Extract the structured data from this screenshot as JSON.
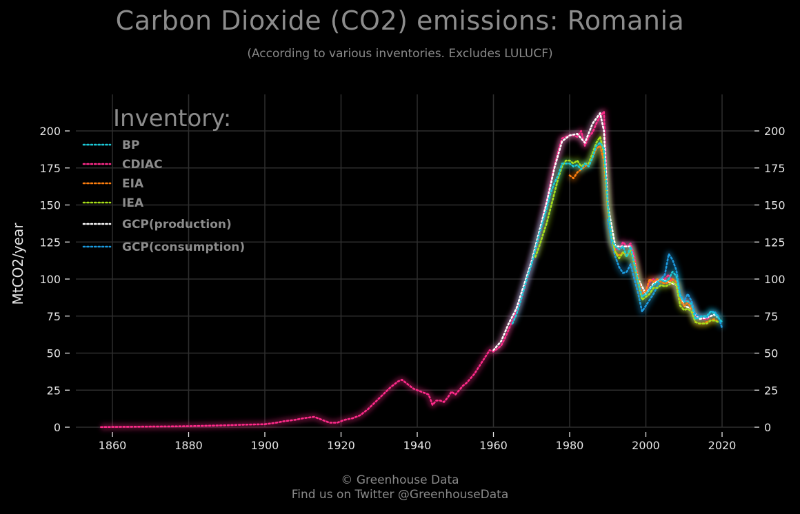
{
  "title": "Carbon Dioxide (CO2) emissions: Romania",
  "subtitle": "(According to various inventories. Excludes LULUCF)",
  "footer": {
    "line1": "© Greenhouse Data",
    "line2": "Find us on Twitter @GreenhouseData"
  },
  "colors": {
    "background": "#000000",
    "grid": "#2e2e2e",
    "text": "#8c8c8c"
  },
  "chart_data": {
    "type": "line",
    "title": "Carbon Dioxide (CO2) emissions: Romania",
    "subtitle": "(According to various inventories. Excludes LULUCF)",
    "xlabel": "",
    "ylabel": "MtCO2/year",
    "xlim": [
      1847,
      2028
    ],
    "ylim": [
      0,
      220
    ],
    "xticks": [
      1860,
      1880,
      1900,
      1920,
      1940,
      1960,
      1980,
      2000,
      2020
    ],
    "yticks": [
      0,
      25,
      50,
      75,
      100,
      125,
      150,
      175,
      200
    ],
    "grid": true,
    "legend_title": "Inventory:",
    "legend_position": "top-left",
    "series": [
      {
        "name": "BP",
        "color": "#1ccad8",
        "x": [
          1965,
          1966,
          1967,
          1968,
          1969,
          1970,
          1971,
          1972,
          1973,
          1974,
          1975,
          1976,
          1977,
          1978,
          1979,
          1980,
          1981,
          1982,
          1983,
          1984,
          1985,
          1986,
          1987,
          1988,
          1989,
          1990,
          1991,
          1992,
          1993,
          1994,
          1995,
          1996,
          1997,
          1998,
          1999,
          2000,
          2001,
          2002,
          2003,
          2004,
          2005,
          2006,
          2007,
          2008,
          2009,
          2010,
          2011,
          2012,
          2013,
          2014,
          2015,
          2016,
          2017,
          2018,
          2019,
          2020
        ],
        "y": [
          70,
          76,
          84,
          93,
          102,
          110,
          120,
          130,
          139,
          148,
          158,
          165,
          170,
          178,
          178,
          178,
          176,
          177,
          174,
          178,
          176,
          182,
          190,
          192,
          188,
          150,
          127,
          122,
          120,
          122,
          115,
          122,
          110,
          98,
          88,
          90,
          93,
          96,
          98,
          100,
          98,
          100,
          105,
          102,
          88,
          85,
          85,
          83,
          73,
          74,
          75,
          75,
          78,
          77,
          74,
          71
        ]
      },
      {
        "name": "CDIAC",
        "color": "#ff2a8a",
        "x": [
          1857,
          1860,
          1865,
          1870,
          1875,
          1880,
          1885,
          1890,
          1895,
          1900,
          1903,
          1905,
          1908,
          1910,
          1913,
          1915,
          1917,
          1919,
          1921,
          1923,
          1925,
          1927,
          1929,
          1931,
          1933,
          1935,
          1936,
          1937,
          1939,
          1941,
          1943,
          1944,
          1945,
          1946,
          1947,
          1948,
          1949,
          1950,
          1951,
          1952,
          1953,
          1954,
          1955,
          1956,
          1957,
          1958,
          1959,
          1960,
          1961,
          1962,
          1963,
          1964,
          1965,
          1966,
          1967,
          1968,
          1969,
          1970,
          1971,
          1972,
          1973,
          1974,
          1975,
          1976,
          1977,
          1978,
          1979,
          1980,
          1981,
          1982,
          1983,
          1984,
          1985,
          1986,
          1987,
          1988,
          1989,
          1990,
          1991,
          1992,
          1993,
          1994,
          1995,
          1996,
          1997,
          1998,
          1999,
          2000,
          2001,
          2002,
          2003,
          2004,
          2005,
          2006,
          2007,
          2008,
          2009,
          2010,
          2011,
          2012,
          2013,
          2014,
          2015,
          2016,
          2017
        ],
        "y": [
          0.1,
          0.2,
          0.3,
          0.4,
          0.5,
          0.7,
          1,
          1.3,
          1.7,
          2,
          3,
          4,
          5,
          6,
          7,
          5,
          3,
          3,
          5,
          6,
          8,
          12,
          17,
          22,
          27,
          31,
          32,
          30,
          26,
          24,
          22,
          15,
          18,
          18,
          17,
          20,
          24,
          22,
          25,
          28,
          30,
          33,
          36,
          40,
          44,
          48,
          52,
          51,
          53,
          55,
          60,
          66,
          72,
          78,
          85,
          93,
          102,
          112,
          120,
          130,
          142,
          153,
          165,
          176,
          186,
          195,
          196,
          197,
          197,
          196,
          200,
          190,
          196,
          199,
          205,
          210,
          213,
          150,
          125,
          120,
          120,
          125,
          122,
          124,
          115,
          100,
          90,
          92,
          98,
          100,
          98,
          100,
          100,
          103,
          98,
          96,
          88,
          86,
          85,
          83,
          75,
          74,
          73,
          73,
          75
        ]
      },
      {
        "name": "EIA",
        "color": "#ff7f0e",
        "x": [
          1980,
          1981,
          1982,
          1983,
          1984,
          1985,
          1986,
          1987,
          1988,
          1989,
          1990,
          1991,
          1992,
          1993,
          1994,
          1995,
          1996,
          1997,
          1998,
          1999,
          2000,
          2001,
          2002,
          2003,
          2004,
          2005,
          2006,
          2007,
          2008,
          2009,
          2010,
          2011,
          2012,
          2013,
          2014,
          2015,
          2016,
          2017,
          2018,
          2019
        ],
        "y": [
          170,
          168,
          172,
          174,
          176,
          178,
          182,
          188,
          190,
          180,
          148,
          128,
          118,
          116,
          118,
          116,
          120,
          112,
          100,
          90,
          92,
          100,
          98,
          100,
          98,
          97,
          98,
          100,
          98,
          86,
          82,
          84,
          80,
          71,
          70,
          70,
          71,
          72,
          73,
          71
        ]
      },
      {
        "name": "IEA",
        "color": "#a8e01a",
        "x": [
          1971,
          1972,
          1973,
          1974,
          1975,
          1976,
          1977,
          1978,
          1979,
          1980,
          1981,
          1982,
          1983,
          1984,
          1985,
          1986,
          1987,
          1988,
          1989,
          1990,
          1991,
          1992,
          1993,
          1994,
          1995,
          1996,
          1997,
          1998,
          1999,
          2000,
          2001,
          2002,
          2003,
          2004,
          2005,
          2006,
          2007,
          2008,
          2009,
          2010,
          2011,
          2012,
          2013,
          2014,
          2015,
          2016,
          2017,
          2018,
          2019
        ],
        "y": [
          115,
          122,
          130,
          138,
          148,
          158,
          168,
          176,
          180,
          180,
          178,
          180,
          176,
          178,
          178,
          185,
          192,
          196,
          185,
          148,
          128,
          118,
          114,
          118,
          115,
          120,
          110,
          98,
          86,
          88,
          90,
          94,
          94,
          96,
          95,
          96,
          98,
          96,
          82,
          79,
          80,
          78,
          71,
          70,
          70,
          70,
          72,
          72,
          71
        ]
      },
      {
        "name": "GCP(production)",
        "color": "#ffffff",
        "x": [
          1960,
          1962,
          1964,
          1966,
          1968,
          1970,
          1972,
          1974,
          1976,
          1978,
          1980,
          1982,
          1984,
          1986,
          1988,
          1989,
          1990,
          1992,
          1994,
          1996,
          1998,
          2000,
          2002,
          2004,
          2006,
          2008,
          2010,
          2012,
          2014,
          2016,
          2018,
          2019
        ],
        "y": [
          52,
          58,
          70,
          80,
          96,
          112,
          132,
          152,
          175,
          193,
          197,
          198,
          192,
          205,
          212,
          200,
          150,
          122,
          122,
          122,
          100,
          90,
          97,
          100,
          98,
          96,
          82,
          80,
          73,
          74,
          76,
          74
        ]
      },
      {
        "name": "GCP(consumption)",
        "color": "#1b9be0",
        "x": [
          1990,
          1991,
          1992,
          1993,
          1994,
          1995,
          1996,
          1997,
          1998,
          1999,
          2000,
          2001,
          2002,
          2003,
          2004,
          2005,
          2006,
          2007,
          2008,
          2009,
          2010,
          2011,
          2012,
          2013,
          2014,
          2015,
          2016,
          2017,
          2018,
          2019,
          2020
        ],
        "y": [
          140,
          125,
          115,
          108,
          104,
          105,
          110,
          100,
          90,
          78,
          82,
          86,
          90,
          95,
          100,
          103,
          117,
          113,
          106,
          90,
          85,
          90,
          85,
          76,
          75,
          75,
          74,
          78,
          78,
          75,
          67
        ]
      }
    ]
  }
}
